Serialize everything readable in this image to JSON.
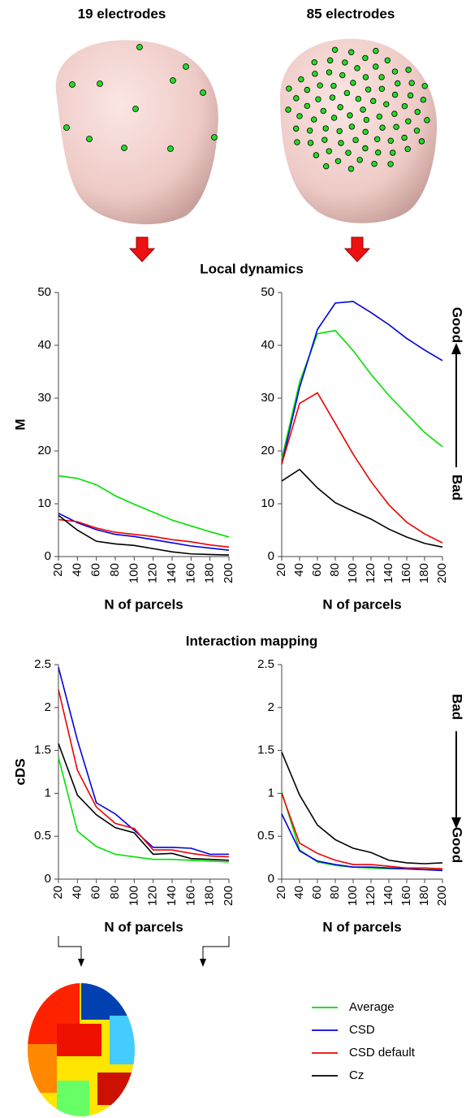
{
  "header": {
    "left": "19 electrodes",
    "right": "85 electrodes"
  },
  "chart_data": [
    {
      "type": "line",
      "title": "Local dynamics",
      "ylabel": "M",
      "xlabel": "N of parcels",
      "x": [
        20,
        40,
        60,
        80,
        100,
        120,
        140,
        160,
        180,
        200
      ],
      "xlim": [
        20,
        200
      ],
      "xticks": [
        20,
        40,
        60,
        80,
        100,
        120,
        140,
        160,
        180,
        200
      ],
      "ylim": [
        0,
        50
      ],
      "yticks": [
        0,
        10,
        20,
        30,
        40,
        50
      ],
      "series": [
        {
          "name": "Average",
          "color": "#00e000",
          "values": [
            15.3,
            14.8,
            13.6,
            11.5,
            9.9,
            8.4,
            6.9,
            5.8,
            4.7,
            3.7
          ]
        },
        {
          "name": "CSD",
          "color": "#0000e0",
          "values": [
            8.2,
            6.4,
            5.1,
            4.2,
            3.8,
            3.2,
            2.6,
            2.0,
            1.6,
            1.2
          ]
        },
        {
          "name": "CSD default",
          "color": "#ee0000",
          "values": [
            7.0,
            6.6,
            5.4,
            4.6,
            4.2,
            3.8,
            3.2,
            2.8,
            2.2,
            1.8
          ]
        },
        {
          "name": "Cz",
          "color": "#000000",
          "values": [
            7.8,
            5.0,
            2.9,
            2.4,
            2.1,
            1.5,
            0.9,
            0.5,
            0.4,
            0.3
          ]
        }
      ]
    },
    {
      "type": "line",
      "xlabel": "N of parcels",
      "x": [
        20,
        40,
        60,
        80,
        100,
        120,
        140,
        160,
        180,
        200
      ],
      "xlim": [
        20,
        200
      ],
      "xticks": [
        20,
        40,
        60,
        80,
        100,
        120,
        140,
        160,
        180,
        200
      ],
      "ylim": [
        0,
        50
      ],
      "yticks": [
        0,
        10,
        20,
        30,
        40,
        50
      ],
      "annotations": [
        {
          "text": "Good",
          "color": "#ee0000"
        },
        {
          "text": "Bad",
          "color": "#000000"
        }
      ],
      "series": [
        {
          "color": "#00e000",
          "values": [
            18.5,
            33,
            42.2,
            42.8,
            39,
            34.5,
            30.5,
            27,
            23.5,
            20.8
          ]
        },
        {
          "color": "#0000e0",
          "values": [
            17.5,
            32,
            43,
            48,
            48.3,
            46.2,
            43.9,
            41.3,
            39.1,
            37.1
          ]
        },
        {
          "color": "#ee0000",
          "values": [
            17.5,
            29,
            31,
            25.2,
            19.4,
            14.2,
            9.8,
            6.5,
            4.3,
            2.6
          ]
        },
        {
          "color": "#000000",
          "values": [
            14.3,
            16.5,
            13,
            10.2,
            8.6,
            7.1,
            5.2,
            3.7,
            2.5,
            1.8
          ]
        }
      ]
    },
    {
      "type": "line",
      "title": "Interaction mapping",
      "ylabel": "cDS",
      "xlabel": "N of parcels",
      "x": [
        20,
        40,
        60,
        80,
        100,
        120,
        140,
        160,
        180,
        200
      ],
      "xlim": [
        20,
        200
      ],
      "xticks": [
        20,
        40,
        60,
        80,
        100,
        120,
        140,
        160,
        180,
        200
      ],
      "ylim": [
        0,
        2.5
      ],
      "yticks": [
        0,
        0.5,
        1,
        1.5,
        2,
        2.5
      ],
      "series": [
        {
          "color": "#00e000",
          "values": [
            1.42,
            0.56,
            0.38,
            0.29,
            0.26,
            0.23,
            0.23,
            0.22,
            0.21,
            0.2
          ]
        },
        {
          "color": "#0000e0",
          "values": [
            2.47,
            1.62,
            0.89,
            0.76,
            0.57,
            0.37,
            0.37,
            0.36,
            0.29,
            0.29
          ]
        },
        {
          "color": "#ee0000",
          "values": [
            2.21,
            1.27,
            0.84,
            0.65,
            0.59,
            0.34,
            0.34,
            0.3,
            0.27,
            0.26
          ]
        },
        {
          "color": "#000000",
          "values": [
            1.58,
            0.98,
            0.75,
            0.6,
            0.54,
            0.29,
            0.3,
            0.24,
            0.23,
            0.22
          ]
        }
      ]
    },
    {
      "type": "line",
      "xlabel": "N of parcels",
      "x": [
        20,
        40,
        60,
        80,
        100,
        120,
        140,
        160,
        180,
        200
      ],
      "xlim": [
        20,
        200
      ],
      "xticks": [
        20,
        40,
        60,
        80,
        100,
        120,
        140,
        160,
        180,
        200
      ],
      "ylim": [
        0,
        2.5
      ],
      "yticks": [
        0,
        0.5,
        1,
        1.5,
        2,
        2.5
      ],
      "annotations": [
        {
          "text": "Bad",
          "color": "#000000"
        },
        {
          "text": "Good",
          "color": "#ee0000"
        }
      ],
      "series": [
        {
          "color": "#00e000",
          "values": [
            1.02,
            0.34,
            0.2,
            0.16,
            0.14,
            0.13,
            0.12,
            0.12,
            0.11,
            0.11
          ]
        },
        {
          "color": "#0000e0",
          "values": [
            0.76,
            0.33,
            0.21,
            0.17,
            0.14,
            0.14,
            0.13,
            0.12,
            0.11,
            0.1
          ]
        },
        {
          "color": "#ee0000",
          "values": [
            1.0,
            0.42,
            0.3,
            0.22,
            0.17,
            0.17,
            0.15,
            0.13,
            0.13,
            0.12
          ]
        },
        {
          "color": "#000000",
          "values": [
            1.48,
            0.98,
            0.63,
            0.46,
            0.36,
            0.31,
            0.22,
            0.19,
            0.18,
            0.19
          ]
        }
      ]
    }
  ]
}
